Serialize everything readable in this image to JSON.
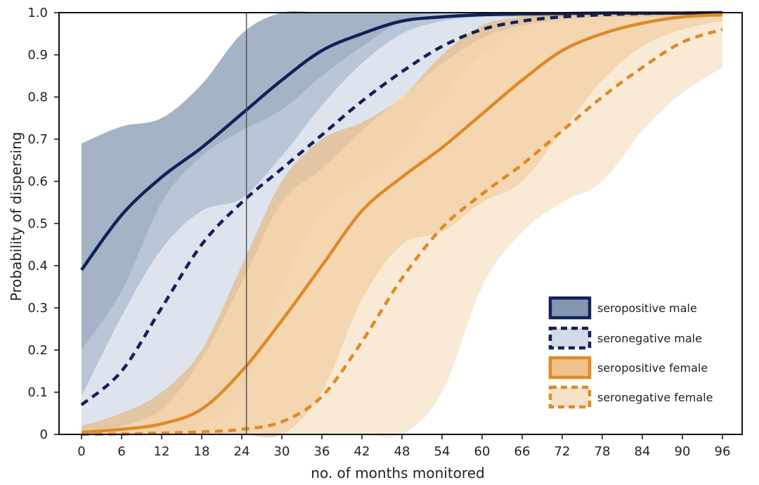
{
  "chart_data": {
    "type": "line",
    "title": "",
    "xlabel": "no. of months monitored",
    "ylabel": "Probability of dispersing",
    "xlim": [
      0,
      96
    ],
    "ylim": [
      0,
      1
    ],
    "x_ticks": [
      0,
      6,
      12,
      18,
      24,
      30,
      36,
      42,
      48,
      54,
      60,
      66,
      72,
      78,
      84,
      90,
      96
    ],
    "y_ticks": [
      "0",
      "0.1",
      "0.2",
      "0.3",
      "0.4",
      "0.5",
      "0.6",
      "0.7",
      "0.8",
      "0.9",
      "1.0"
    ],
    "reference_line_x": 24.7,
    "legend_position": "bottom-right",
    "series": [
      {
        "name": "seropositive male",
        "line_style": "solid",
        "line_color": "#14205a",
        "band_color": "#5a7496",
        "band_opacity": 0.55,
        "x": [
          0,
          6,
          12,
          18,
          24,
          30,
          36,
          42,
          48,
          54,
          60,
          66,
          72,
          78,
          84,
          90,
          96
        ],
        "values": [
          0.39,
          0.52,
          0.61,
          0.68,
          0.76,
          0.84,
          0.91,
          0.95,
          0.98,
          0.99,
          0.995,
          0.997,
          0.998,
          0.999,
          0.999,
          0.999,
          1.0
        ],
        "lower": [
          0.09,
          0.28,
          0.44,
          0.53,
          0.56,
          0.66,
          0.78,
          0.88,
          0.95,
          0.98,
          0.99,
          0.99,
          0.99,
          0.99,
          0.99,
          0.99,
          0.99
        ],
        "upper": [
          0.69,
          0.73,
          0.75,
          0.83,
          0.95,
          1.0,
          1.0,
          1.0,
          1.0,
          1.0,
          1.0,
          1.0,
          1.0,
          1.0,
          1.0,
          1.0,
          1.0
        ]
      },
      {
        "name": "seronegative male",
        "line_style": "dashed",
        "line_color": "#14205a",
        "band_color": "#c8d2e2",
        "band_opacity": 0.6,
        "x": [
          0,
          6,
          12,
          18,
          24,
          30,
          36,
          42,
          48,
          54,
          60,
          66,
          72,
          78,
          84,
          90,
          96
        ],
        "values": [
          0.07,
          0.15,
          0.3,
          0.45,
          0.55,
          0.63,
          0.71,
          0.79,
          0.86,
          0.92,
          0.96,
          0.98,
          0.99,
          0.995,
          0.998,
          0.999,
          1.0
        ],
        "lower": [
          0.01,
          0.02,
          0.06,
          0.18,
          0.36,
          0.55,
          0.63,
          0.72,
          0.8,
          0.88,
          0.94,
          0.97,
          0.98,
          0.99,
          0.99,
          0.99,
          0.99
        ],
        "upper": [
          0.2,
          0.34,
          0.55,
          0.66,
          0.72,
          0.77,
          0.85,
          0.92,
          0.98,
          1.0,
          1.0,
          1.0,
          1.0,
          1.0,
          1.0,
          1.0,
          1.0
        ]
      },
      {
        "name": "seropositive female",
        "line_style": "solid",
        "line_color": "#de8a28",
        "band_color": "#e8a858",
        "band_opacity": 0.5,
        "x": [
          0,
          6,
          12,
          18,
          24,
          30,
          36,
          42,
          48,
          54,
          60,
          66,
          72,
          78,
          84,
          90,
          96
        ],
        "values": [
          0.005,
          0.012,
          0.025,
          0.06,
          0.15,
          0.27,
          0.4,
          0.53,
          0.61,
          0.68,
          0.76,
          0.84,
          0.91,
          0.95,
          0.975,
          0.99,
          0.995
        ],
        "lower": [
          0.0,
          0.0,
          0.0,
          0.0,
          0.0,
          0.0,
          0.1,
          0.32,
          0.45,
          0.48,
          0.55,
          0.6,
          0.72,
          0.84,
          0.92,
          0.96,
          0.98
        ],
        "upper": [
          0.02,
          0.05,
          0.1,
          0.2,
          0.4,
          0.6,
          0.7,
          0.74,
          0.8,
          0.9,
          0.97,
          0.99,
          1.0,
          1.0,
          1.0,
          1.0,
          1.0
        ]
      },
      {
        "name": "seronegative female",
        "line_style": "dashed",
        "line_color": "#de8a28",
        "band_color": "#f4d8b4",
        "band_opacity": 0.55,
        "x": [
          0,
          6,
          12,
          18,
          24,
          30,
          36,
          42,
          48,
          54,
          60,
          66,
          72,
          78,
          84,
          90,
          96
        ],
        "values": [
          0.0,
          0.001,
          0.003,
          0.006,
          0.012,
          0.03,
          0.09,
          0.22,
          0.37,
          0.49,
          0.57,
          0.64,
          0.72,
          0.8,
          0.87,
          0.93,
          0.96
        ],
        "lower": [
          0.0,
          0.0,
          0.0,
          0.0,
          0.0,
          0.0,
          0.0,
          0.0,
          0.0,
          0.1,
          0.35,
          0.48,
          0.55,
          0.6,
          0.72,
          0.81,
          0.87
        ],
        "upper": [
          0.0,
          0.0,
          0.01,
          0.02,
          0.1,
          0.35,
          0.53,
          0.6,
          0.68,
          0.8,
          0.9,
          0.96,
          0.99,
          1.0,
          1.0,
          1.0,
          1.0
        ]
      }
    ]
  }
}
